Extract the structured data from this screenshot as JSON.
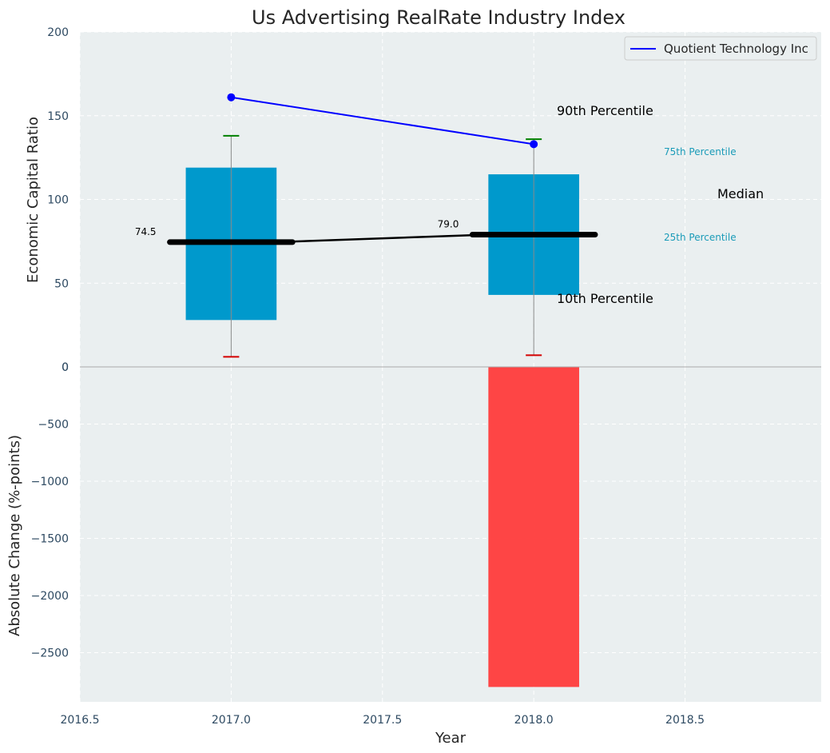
{
  "chart_data": {
    "type": "box",
    "title": "Us Advertising RealRate Industry Index",
    "xlabel": "Year",
    "x_ticks": [
      "2016.5",
      "2017.0",
      "2017.5",
      "2018.0",
      "2018.5"
    ],
    "xlim": [
      2016.5,
      2018.95
    ],
    "grid": true,
    "top_panel": {
      "ylabel": "Economic Capital Ratio",
      "ylim": [
        0,
        200
      ],
      "y_ticks": [
        "0",
        "50",
        "100",
        "150",
        "200"
      ],
      "boxes": [
        {
          "x": 2017.0,
          "p10": 6,
          "p25": 28,
          "median": 74.5,
          "p75": 119,
          "p90": 138,
          "median_label": "74.5"
        },
        {
          "x": 2018.0,
          "p10": 7,
          "p25": 43,
          "median": 79.0,
          "p75": 115,
          "p90": 136,
          "median_label": "79.0"
        }
      ],
      "series": [
        {
          "name": "Quotient Technology Inc",
          "x": [
            2017.0,
            2018.0
          ],
          "values": [
            161,
            133
          ],
          "color": "#0000ff"
        }
      ],
      "legend": "top-right",
      "annotations": {
        "p90": "90th Percentile",
        "p75": "75th Percentile",
        "median": "Median",
        "p25": "25th Percentile",
        "p10": "10th Percentile"
      },
      "box_color": "#0099cc"
    },
    "bottom_panel": {
      "ylabel": "Absolute Change (%-points)",
      "y_ticks": [
        "−2500",
        "−2000",
        "−1500",
        "−1000",
        "−500",
        "0"
      ],
      "y_tick_values": [
        -2500,
        -2000,
        -1500,
        -1000,
        -500,
        0
      ],
      "ylim": [
        -2930,
        0
      ],
      "bars": [
        {
          "x": 2018.0,
          "value": -2800,
          "color": "#ff3b3b"
        }
      ]
    }
  }
}
